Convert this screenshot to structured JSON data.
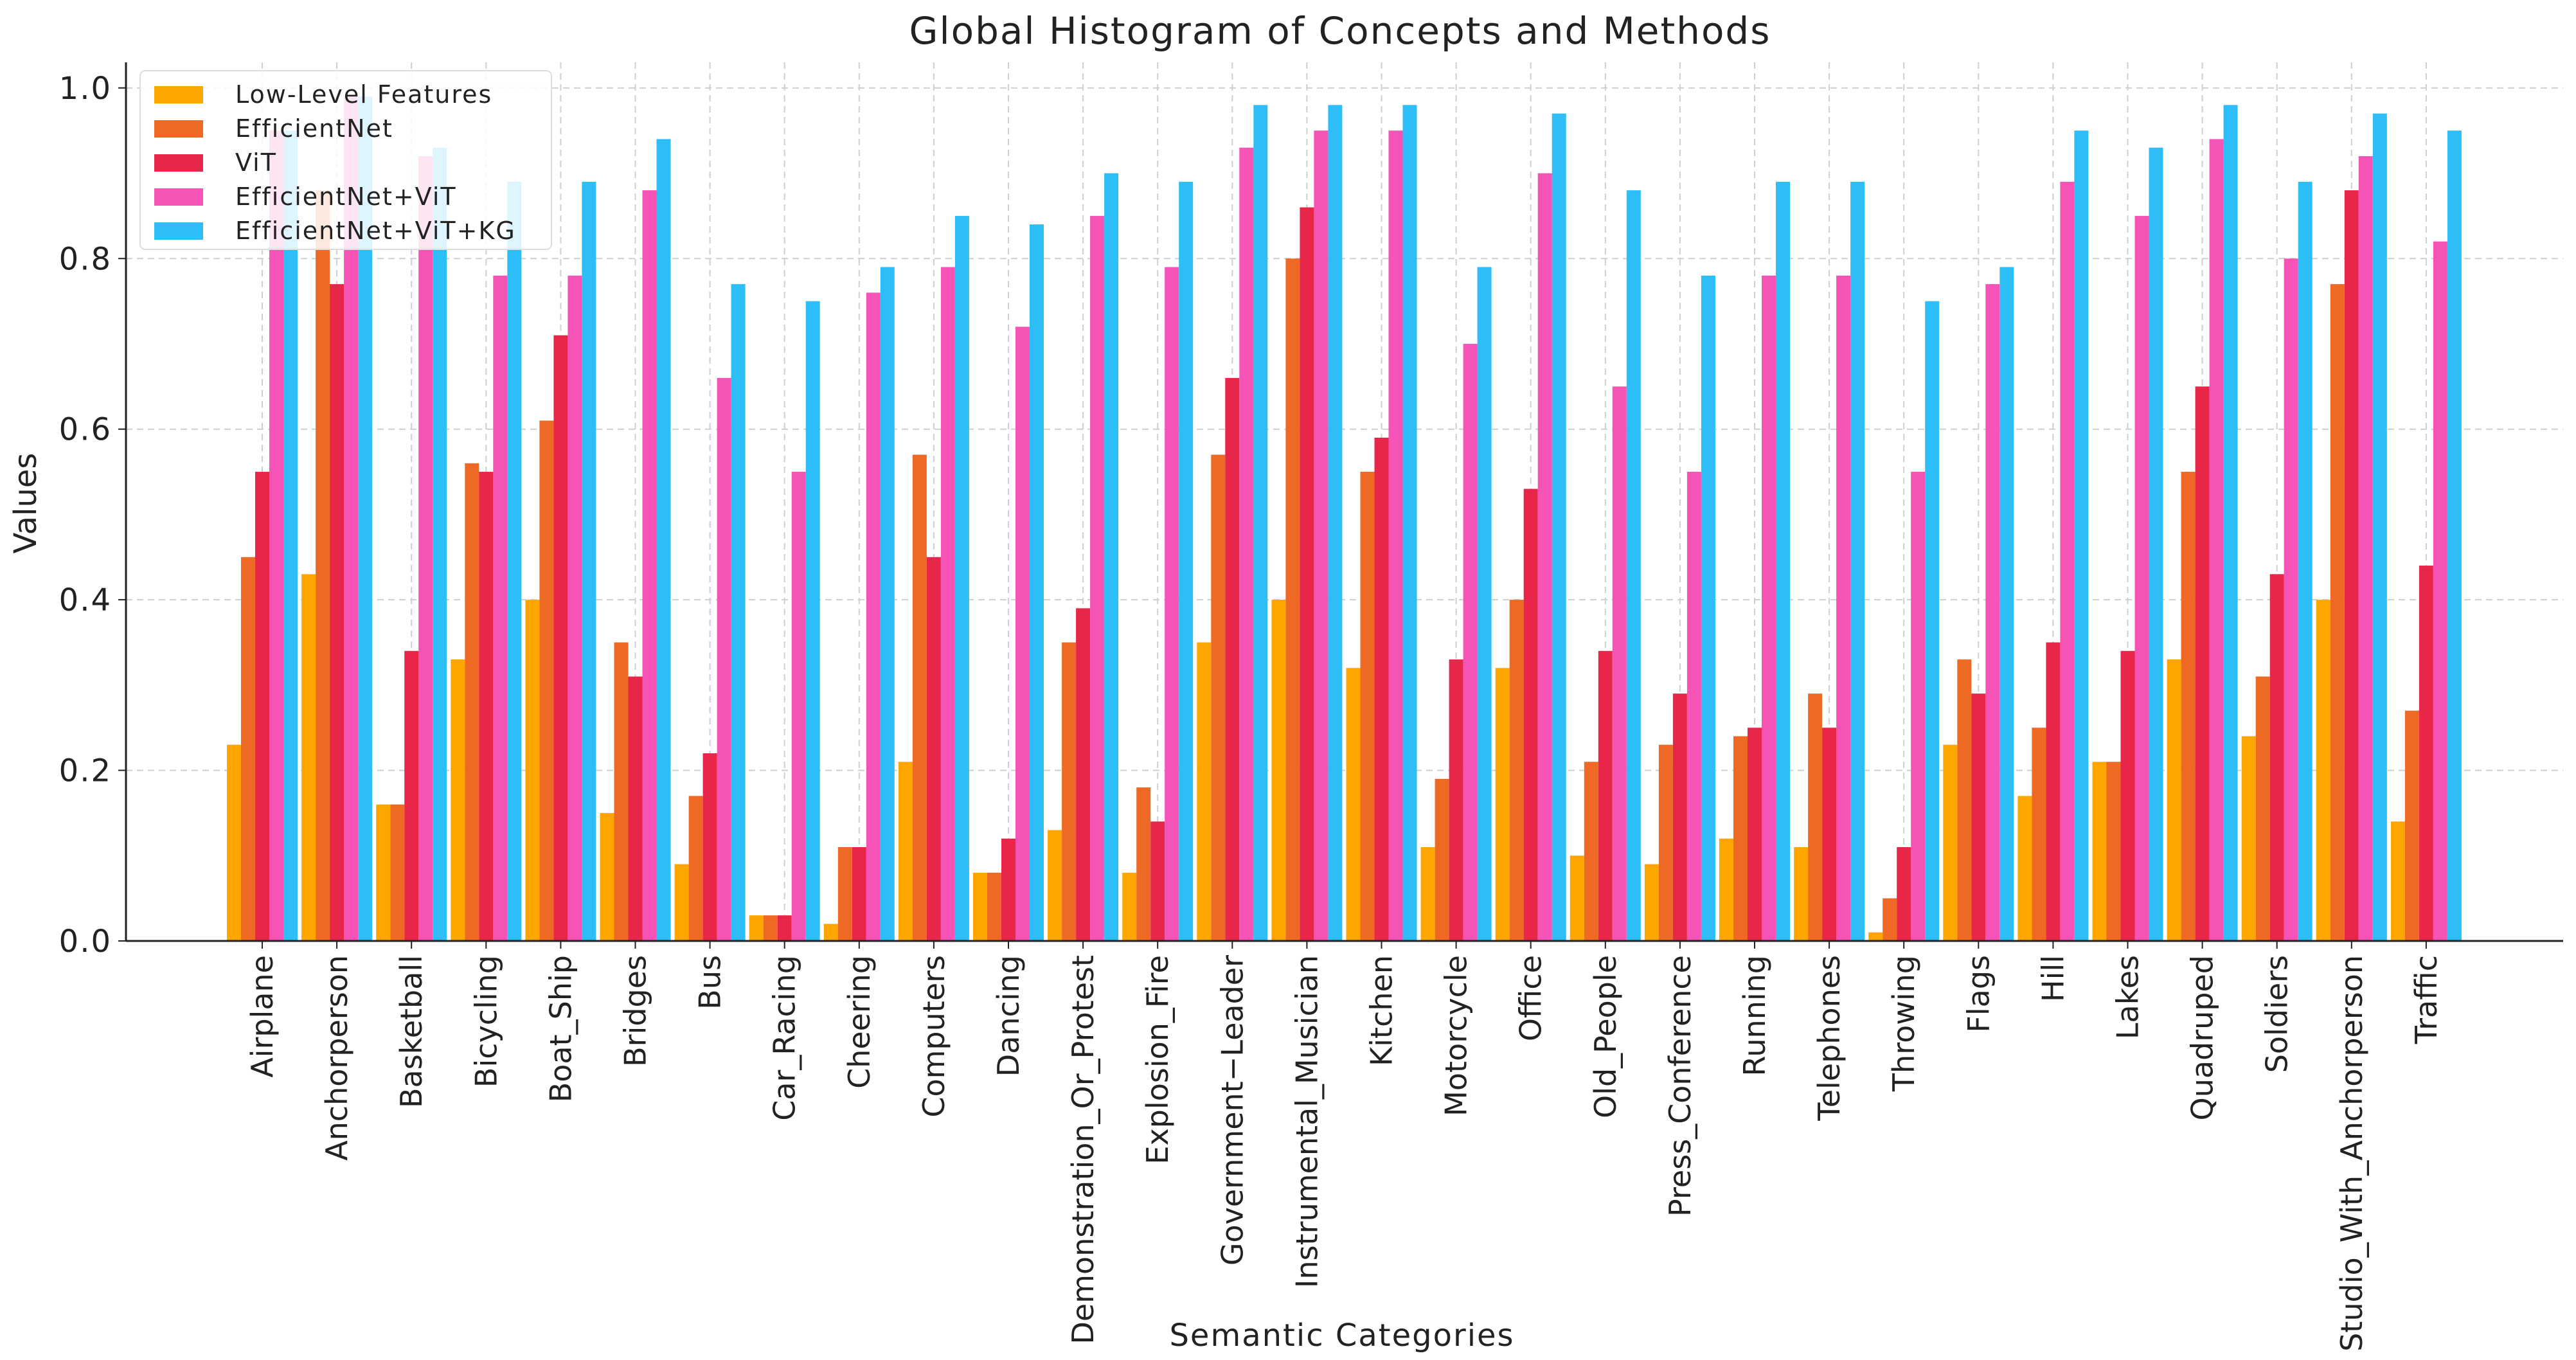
{
  "chart_data": {
    "type": "bar",
    "title": "Global Histogram of Concepts and Methods",
    "xlabel": "Semantic Categories",
    "ylabel": "Values",
    "ylim": [
      0,
      1.03
    ],
    "yticks": [
      0.0,
      0.2,
      0.4,
      0.6,
      0.8,
      1.0
    ],
    "ytick_labels": [
      "0.0",
      "0.2",
      "0.4",
      "0.6",
      "0.8",
      "1.0"
    ],
    "grid": true,
    "legend_position": "top-left",
    "categories": [
      "Airplane",
      "Anchorperson",
      "Basketball",
      "Bicycling",
      "Boat_Ship",
      "Bridges",
      "Bus",
      "Car_Racing",
      "Cheering",
      "Computers",
      "Dancing",
      "Demonstration_Or_Protest",
      "Explosion_Fire",
      "Government−Leader",
      "Instrumental_Musician",
      "Kitchen",
      "Motorcycle",
      "Office",
      "Old_People",
      "Press_Conference",
      "Running",
      "Telephones",
      "Throwing",
      "Flags",
      "Hill",
      "Lakes",
      "Quadruped",
      "Soldiers",
      "Studio_With_Anchorperson",
      "Traffic"
    ],
    "series": [
      {
        "name": "Low-Level Features",
        "color": "#FFA500",
        "values": [
          0.23,
          0.43,
          0.16,
          0.33,
          0.4,
          0.15,
          0.09,
          0.03,
          0.02,
          0.21,
          0.08,
          0.13,
          0.08,
          0.35,
          0.4,
          0.32,
          0.11,
          0.32,
          0.1,
          0.09,
          0.12,
          0.11,
          0.01,
          0.23,
          0.17,
          0.21,
          0.33,
          0.24,
          0.4,
          0.14
        ]
      },
      {
        "name": "EfficientNet",
        "color": "#EE6A24",
        "values": [
          0.45,
          0.88,
          0.16,
          0.56,
          0.61,
          0.35,
          0.17,
          0.03,
          0.11,
          0.57,
          0.08,
          0.35,
          0.18,
          0.57,
          0.8,
          0.55,
          0.19,
          0.4,
          0.21,
          0.23,
          0.24,
          0.29,
          0.05,
          0.33,
          0.25,
          0.21,
          0.55,
          0.31,
          0.77,
          0.27
        ]
      },
      {
        "name": "ViT",
        "color": "#E8264A",
        "values": [
          0.55,
          0.77,
          0.34,
          0.55,
          0.71,
          0.31,
          0.22,
          0.03,
          0.11,
          0.45,
          0.12,
          0.39,
          0.14,
          0.66,
          0.86,
          0.59,
          0.33,
          0.53,
          0.34,
          0.29,
          0.25,
          0.25,
          0.11,
          0.29,
          0.35,
          0.34,
          0.65,
          0.43,
          0.88,
          0.44
        ]
      },
      {
        "name": "EfficientNet+ViT",
        "color": "#F553B5",
        "values": [
          0.95,
          0.99,
          0.92,
          0.78,
          0.78,
          0.88,
          0.66,
          0.55,
          0.76,
          0.79,
          0.72,
          0.85,
          0.79,
          0.93,
          0.95,
          0.95,
          0.7,
          0.9,
          0.65,
          0.55,
          0.78,
          0.78,
          0.55,
          0.77,
          0.89,
          0.85,
          0.94,
          0.8,
          0.92,
          0.82
        ]
      },
      {
        "name": "EfficientNet+ViT+KG",
        "color": "#2DBEF7",
        "values": [
          0.95,
          0.99,
          0.93,
          0.89,
          0.89,
          0.94,
          0.77,
          0.75,
          0.79,
          0.85,
          0.84,
          0.9,
          0.89,
          0.98,
          0.98,
          0.98,
          0.79,
          0.97,
          0.88,
          0.78,
          0.89,
          0.89,
          0.75,
          0.79,
          0.95,
          0.93,
          0.98,
          0.89,
          0.97,
          0.95
        ]
      }
    ]
  }
}
